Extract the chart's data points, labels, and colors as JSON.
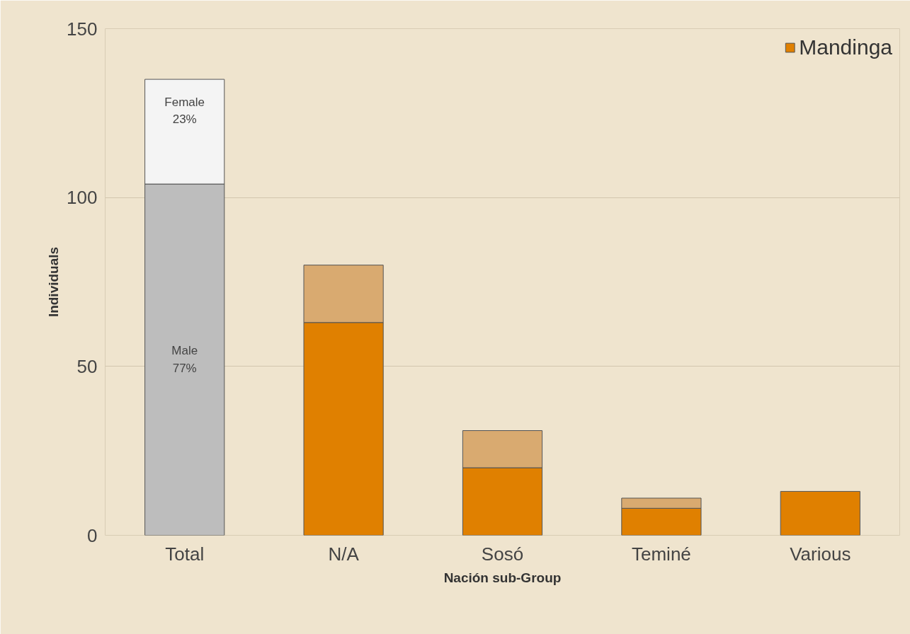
{
  "chart_data": {
    "type": "bar",
    "stacked": true,
    "xlabel": "Nación sub-Group",
    "ylabel": "Individuals",
    "categories": [
      "Total",
      "N/A",
      "Sosó",
      "Teminé",
      "Various"
    ],
    "series": [
      {
        "name": "Mandinga",
        "color": "#e08000",
        "colors": [
          "#bdbdbd",
          "#e08000",
          "#e08000",
          "#e08000",
          "#e08000"
        ],
        "values": [
          104,
          63,
          20,
          8,
          13
        ]
      },
      {
        "colors": [
          "#f4f4f4",
          "#d9aa70",
          "#d9aa70",
          "#d9aa70",
          "#d9aa70"
        ],
        "values": [
          31,
          17,
          11,
          3,
          null
        ]
      }
    ],
    "ylim": [
      0,
      150
    ],
    "yticks": [
      0,
      50,
      100,
      150
    ],
    "grid": "y",
    "legend": "top right",
    "annotations": [
      "Female\n23%",
      "Male\n77%"
    ]
  }
}
